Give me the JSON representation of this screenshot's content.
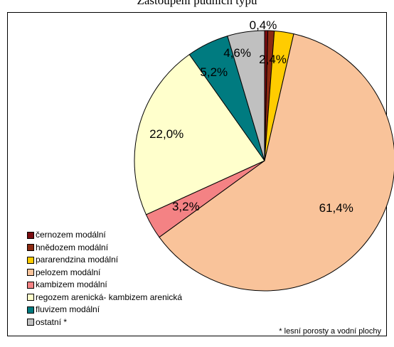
{
  "chart_data": {
    "type": "pie",
    "title": "Zastoupení půdních typů",
    "slices": [
      {
        "label": "černozem modální",
        "value": 0.4,
        "value_label": "0,4%",
        "color": "#7a0c10"
      },
      {
        "label": "hnědozem modální",
        "value": 0.8,
        "value_label": "",
        "color": "#8c2a12"
      },
      {
        "label": "pararendzina modální",
        "value": 2.4,
        "value_label": "2,4%",
        "color": "#ffcc00"
      },
      {
        "label": "pelozem modální",
        "value": 61.4,
        "value_label": "61,4%",
        "color": "#f9c39a"
      },
      {
        "label": "kambizem modální",
        "value": 3.2,
        "value_label": "3,2%",
        "color": "#f48284"
      },
      {
        "label": "regozem arenická- kambizem arenická",
        "value": 22.0,
        "value_label": "22,0%",
        "color": "#ffffcc"
      },
      {
        "label": "fluvizem modální",
        "value": 5.2,
        "value_label": "5,2%",
        "color": "#007b80"
      },
      {
        "label": "ostatní *",
        "value": 4.6,
        "value_label": "4,6%",
        "color": "#c0c0c0"
      }
    ],
    "legend_position": "bottom-left",
    "footnote": "* lesní porosty a vodní plochy"
  }
}
